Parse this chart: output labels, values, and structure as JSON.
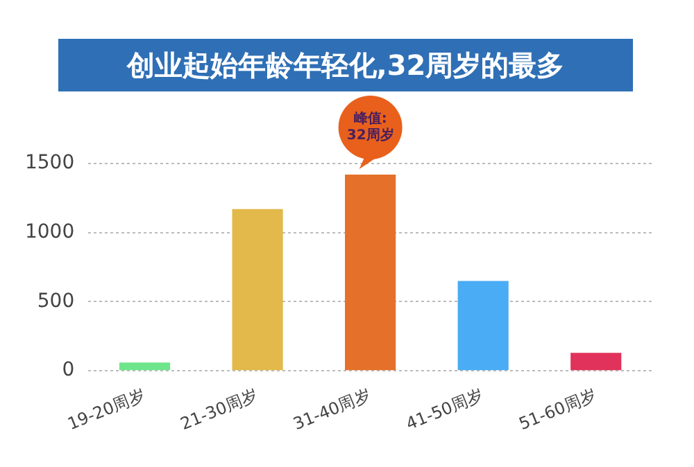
{
  "chart_data": {
    "type": "bar",
    "title": "创业起始年龄年轻化,32周岁的最多",
    "categories": [
      "19-20周岁",
      "21-30周岁",
      "31-40周岁",
      "41-50周岁",
      "51-60周岁"
    ],
    "values": [
      60,
      1170,
      1420,
      650,
      130
    ],
    "colors": [
      "#6ee58a",
      "#e2b94a",
      "#e4702a",
      "#4aacf5",
      "#e0325a"
    ],
    "ylim": [
      0,
      1500
    ],
    "yticks": [
      0,
      500,
      1000,
      1500
    ],
    "grid": "y",
    "annotations": [
      {
        "text": "峰值:\n32周岁",
        "x": "31-40周岁",
        "y": 1420
      }
    ]
  }
}
